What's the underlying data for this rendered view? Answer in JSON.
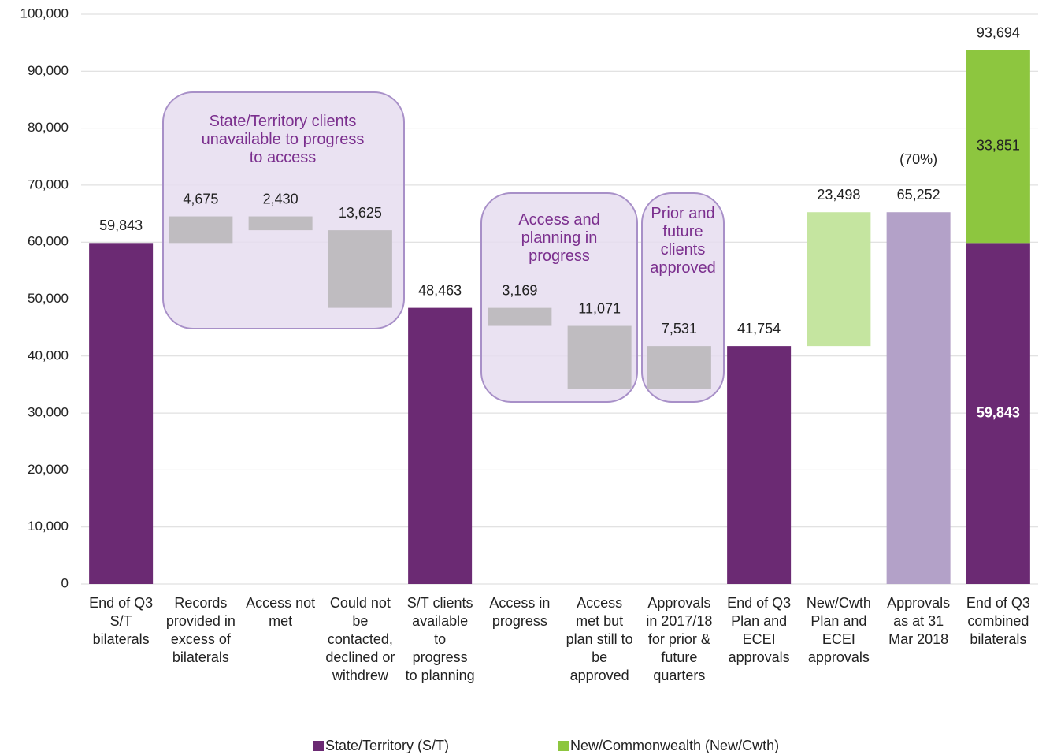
{
  "chart_data": {
    "type": "waterfall",
    "categories": [
      "End of Q3\nS/T\nbilaterals",
      "Records\nprovided in\nexcess of\nbilaterals",
      "Access not\nmet",
      "Could not\nbe\ncontacted,\ndeclined or\nwithdrew",
      "S/T clients\navailable\nto\nprogress\nto planning",
      "Access in\nprogress",
      "Access\nmet but\nplan still to\nbe\napproved",
      "Approvals\nin 2017/18\nfor prior &\nfuture\nquarters",
      "End of Q3\nPlan and\nECEI\napprovals",
      "New/Cwth\nPlan and\nECEI\napprovals",
      "Approvals\nas at 31\nMar 2018",
      "End of Q3\ncombined\nbilaterals"
    ],
    "values": [
      59843,
      4675,
      2430,
      13625,
      48463,
      3169,
      11071,
      7531,
      41754,
      23498,
      65252,
      93694
    ],
    "value_labels": [
      "59,843",
      "4,675",
      "2,430",
      "13,625",
      "48,463",
      "3,169",
      "11,071",
      "7,531",
      "41,754",
      "23,498",
      "65,252",
      "93,694"
    ],
    "measures": [
      "total",
      "increase",
      "decrease",
      "decrease",
      "total",
      "decrease",
      "decrease",
      "increase",
      "total",
      "increase",
      "total",
      "stacked"
    ],
    "colors": [
      "#6b2a73",
      "#bfbcc0",
      "#bfbcc0",
      "#bfbcc0",
      "#6b2a73",
      "#bfbcc0",
      "#bfbcc0",
      "#bfbcc0",
      "#6b2a73",
      "#c5e5a0",
      "#b3a1c8",
      null
    ],
    "stack": [
      {
        "name": "State/Territory (S/T)",
        "color": "#6b2a73",
        "value": 59843,
        "value_label": "59,843"
      },
      {
        "name": "New/Commonwealth (New/Cwth)",
        "color": "#8dc63f",
        "value": 33851,
        "value_label": "33,851"
      }
    ],
    "annotations": [
      "State/Territory clients\nunavailable to progress\nto access",
      "Access and\nplanning in\nprogress",
      "Prior and\nfuture\nclients\napproved",
      "(70%)"
    ],
    "ylim": [
      0,
      100000
    ],
    "yticks": [
      0,
      {
        "value": 10000,
        "label": "10,000"
      },
      {
        "value": 20000,
        "label": "20,000"
      },
      {
        "value": 30000,
        "label": "30,000"
      },
      {
        "value": 40000,
        "label": "40,000"
      },
      {
        "value": 50000,
        "label": "50,000"
      },
      {
        "value": 60000,
        "label": "60,000"
      },
      {
        "value": 70000,
        "label": "70,000"
      },
      {
        "value": 80000,
        "label": "80,000"
      },
      {
        "value": 90000,
        "label": "90,000"
      },
      {
        "value": 100000,
        "label": "100,000"
      }
    ],
    "grid": true
  }
}
